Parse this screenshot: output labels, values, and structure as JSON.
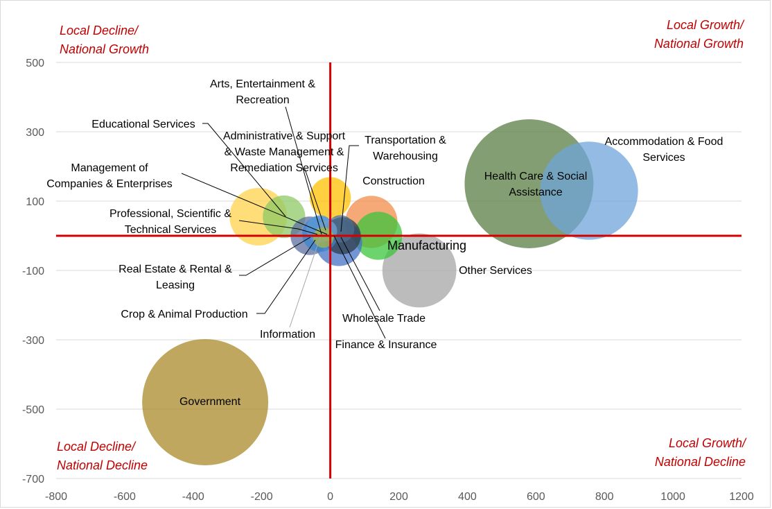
{
  "chart_data": {
    "type": "bubble",
    "xlim": [
      -800,
      1200
    ],
    "ylim": [
      -700,
      500
    ],
    "xticks": [
      -800,
      -600,
      -400,
      -200,
      0,
      200,
      400,
      600,
      800,
      1000,
      1200
    ],
    "yticks": [
      500,
      300,
      100,
      -100,
      -300,
      -500,
      -700
    ],
    "ytick_labels": [
      "500",
      "300",
      "100",
      "-100",
      "-300",
      "-500",
      "-700"
    ],
    "grid": true,
    "axis_line_color": "#d40000",
    "quadrant_label_color": "#c00000",
    "quadrants": {
      "top_left": [
        "Local Decline/",
        "National Growth"
      ],
      "top_right": [
        "Local Growth/",
        "National Growth"
      ],
      "bottom_left": [
        "Local Decline/",
        "National Decline"
      ],
      "bottom_right": [
        "Local Growth/",
        "National Decline"
      ]
    },
    "bubbles": [
      {
        "name": "Government",
        "label_lines": [
          "Government"
        ],
        "x": -365,
        "y": -480,
        "r": 184,
        "color": "#a9892a"
      },
      {
        "name": "Health Care & Social Assistance",
        "label_lines": [
          "Health Care & Social",
          "Assistance"
        ],
        "x": 580,
        "y": 150,
        "r": 188,
        "color": "#5a7e43"
      },
      {
        "name": "Accommodation & Food Services",
        "label_lines": [
          "Accommodation & Food",
          "Services"
        ],
        "x": 755,
        "y": 130,
        "r": 143,
        "color": "#6fa4db"
      },
      {
        "name": "Other Services",
        "label_lines": [
          "Other Services"
        ],
        "x": 260,
        "y": -100,
        "r": 108,
        "color": "#a6a6a6"
      },
      {
        "name": "Construction",
        "label_lines": [
          "Construction"
        ],
        "x": 120,
        "y": 40,
        "r": 76,
        "color": "#f08c4a"
      },
      {
        "name": "Manufacturing",
        "label_lines": [
          "Manufacturing"
        ],
        "x": 140,
        "y": 0,
        "r": 70,
        "color": "#3cc43c"
      },
      {
        "name": "Professional, Scientific & Technical Services",
        "label_lines": [
          "Professional, Scientific &",
          "Technical Services"
        ],
        "x": -210,
        "y": 55,
        "r": 84,
        "color": "#ffd34d"
      },
      {
        "name": "Arts, Entertainment & Recreation",
        "label_lines": [
          "Arts, Entertainment &",
          "Recreation"
        ],
        "x": 0,
        "y": 110,
        "r": 60,
        "color": "#ffc000"
      },
      {
        "name": "Educational Services",
        "label_lines": [
          "Educational Services"
        ],
        "x": -135,
        "y": 55,
        "r": 62,
        "color": "#8ec965"
      },
      {
        "name": "Finance & Insurance",
        "label_lines": [
          "Finance & Insurance"
        ],
        "x": 25,
        "y": -20,
        "r": 68,
        "color": "#4472c4"
      },
      {
        "name": "Wholesale Trade",
        "label_lines": [
          "Wholesale Trade"
        ],
        "x": 35,
        "y": 0,
        "r": 54,
        "color": "#2f3d4c"
      },
      {
        "name": "Real Estate & Rental & Leasing",
        "label_lines": [
          "Real Estate & Rental &",
          "Leasing"
        ],
        "x": -60,
        "y": 0,
        "r": 56,
        "color": "#5b6f9f"
      },
      {
        "name": "Information",
        "label_lines": [
          "Information"
        ],
        "x": -30,
        "y": 5,
        "r": 52,
        "color": "#3b86cf"
      },
      {
        "name": "Administrative & Support & Waste Management & Remediation Services",
        "label_lines": [
          "Administrative & Support",
          "& Waste Management &",
          "Remediation Services"
        ],
        "x": -30,
        "y": 20,
        "r": 40,
        "color": "#5b9bd5"
      },
      {
        "name": "Transportation & Warehousing",
        "label_lines": [
          "Transportation &",
          "Warehousing"
        ],
        "x": 30,
        "y": 20,
        "r": 40,
        "color": "#4d6e8f"
      },
      {
        "name": "Management of Companies & Enterprises",
        "label_lines": [
          "Management of",
          "Companies & Enterprises"
        ],
        "x": -10,
        "y": 15,
        "r": 30,
        "color": "#70a0c8"
      },
      {
        "name": "Crop & Animal Production",
        "label_lines": [
          "Crop & Animal Production"
        ],
        "x": -20,
        "y": -5,
        "r": 30,
        "color": "#a8b64a"
      }
    ]
  }
}
